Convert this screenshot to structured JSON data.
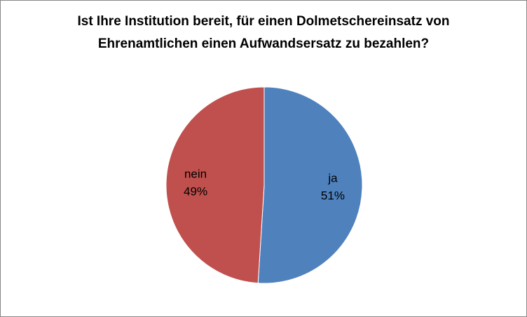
{
  "chart_data": {
    "type": "pie",
    "title": "Ist Ihre Institution bereit, für einen Dolmetschereinsatz von Ehrenamtlichen einen Aufwandsersatz zu bezahlen?",
    "categories": [
      "ja",
      "nein"
    ],
    "values": [
      51,
      49
    ],
    "value_labels": [
      "51%",
      "49%"
    ],
    "colors": [
      "#4f81bd",
      "#c0504d"
    ]
  }
}
